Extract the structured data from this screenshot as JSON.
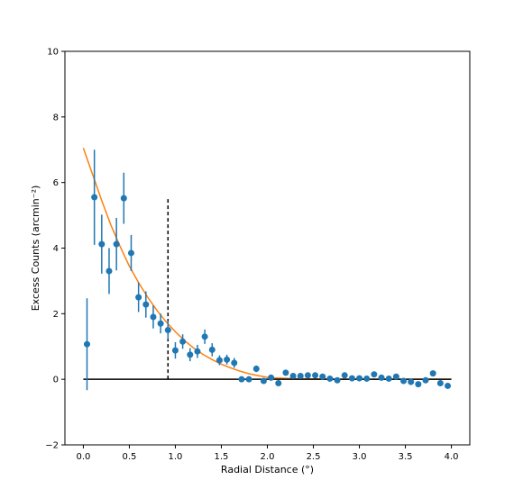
{
  "chart_data": {
    "type": "scatter",
    "title": "",
    "xlabel": "Radial Distance (°)",
    "ylabel": "Excess Counts (arcmin⁻²)",
    "xlim": [
      -0.2,
      4.2
    ],
    "ylim": [
      -2,
      10
    ],
    "xticks": [
      0.0,
      0.5,
      1.0,
      1.5,
      2.0,
      2.5,
      3.0,
      3.5,
      4.0
    ],
    "xtick_labels": [
      "0.0",
      "0.5",
      "1.0",
      "1.5",
      "2.0",
      "2.5",
      "3.0",
      "3.5",
      "4.0"
    ],
    "yticks": [
      -2,
      0,
      2,
      4,
      6,
      8,
      10
    ],
    "ytick_labels": [
      "−2",
      "0",
      "2",
      "4",
      "6",
      "8",
      "10"
    ],
    "grid": false,
    "series": [
      {
        "kind": "errorbar",
        "color": "#1f77b4",
        "x": [
          0.04,
          0.12,
          0.2,
          0.28,
          0.36,
          0.44,
          0.52,
          0.6,
          0.68,
          0.76,
          0.84,
          0.92,
          1.0,
          1.08,
          1.16,
          1.24,
          1.32,
          1.4,
          1.48,
          1.56,
          1.64,
          1.72,
          1.8,
          1.88,
          1.96,
          2.04,
          2.12,
          2.2,
          2.28,
          2.36,
          2.44,
          2.52,
          2.6,
          2.68,
          2.76,
          2.84,
          2.92,
          3.0,
          3.08,
          3.16,
          3.24,
          3.32,
          3.4,
          3.48,
          3.56,
          3.64,
          3.72,
          3.8,
          3.88,
          3.96
        ],
        "y": [
          1.07,
          5.55,
          4.12,
          3.3,
          4.12,
          5.52,
          3.85,
          2.5,
          2.28,
          1.9,
          1.7,
          1.5,
          0.88,
          1.15,
          0.75,
          0.85,
          1.3,
          0.9,
          0.58,
          0.6,
          0.5,
          0.0,
          0.0,
          0.32,
          -0.05,
          0.05,
          -0.12,
          0.2,
          0.1,
          0.1,
          0.12,
          0.12,
          0.08,
          0.02,
          -0.03,
          0.12,
          0.03,
          0.03,
          0.02,
          0.15,
          0.05,
          0.02,
          0.08,
          -0.05,
          -0.08,
          -0.15,
          -0.03,
          0.18,
          -0.12,
          -0.2
        ],
        "yerr": [
          1.4,
          1.45,
          0.9,
          0.7,
          0.8,
          0.78,
          0.55,
          0.45,
          0.4,
          0.35,
          0.3,
          0.28,
          0.25,
          0.22,
          0.2,
          0.2,
          0.22,
          0.2,
          0.15,
          0.15,
          0.15,
          0.0,
          0.0,
          0.1,
          0.05,
          0.05,
          0.08,
          0.05,
          0.05,
          0.05,
          0.05,
          0.05,
          0.05,
          0.05,
          0.05,
          0.05,
          0.05,
          0.05,
          0.05,
          0.05,
          0.05,
          0.05,
          0.05,
          0.05,
          0.05,
          0.05,
          0.05,
          0.05,
          0.05,
          0.05
        ]
      },
      {
        "kind": "line",
        "color": "#ff7f0e",
        "x": [
          0.0,
          0.1,
          0.2,
          0.3,
          0.4,
          0.5,
          0.6,
          0.7,
          0.8,
          0.9,
          1.0,
          1.1,
          1.2,
          1.3,
          1.4,
          1.5,
          1.6,
          1.7,
          1.8,
          1.9,
          2.0,
          2.1,
          2.2,
          2.3,
          2.5,
          3.0,
          3.5,
          4.0
        ],
        "y": [
          7.05,
          6.25,
          5.45,
          4.7,
          4.05,
          3.45,
          2.95,
          2.5,
          2.1,
          1.75,
          1.45,
          1.18,
          0.95,
          0.76,
          0.6,
          0.46,
          0.35,
          0.25,
          0.17,
          0.11,
          0.06,
          0.04,
          0.03,
          0.02,
          0.01,
          0.0,
          0.0,
          0.0
        ]
      },
      {
        "kind": "hline",
        "color": "#000000",
        "y": 0,
        "x": [
          0.0,
          4.0
        ]
      },
      {
        "kind": "vline",
        "style": "dashed",
        "color": "#000000",
        "x": 0.92,
        "y": [
          0.0,
          5.5
        ]
      }
    ]
  }
}
